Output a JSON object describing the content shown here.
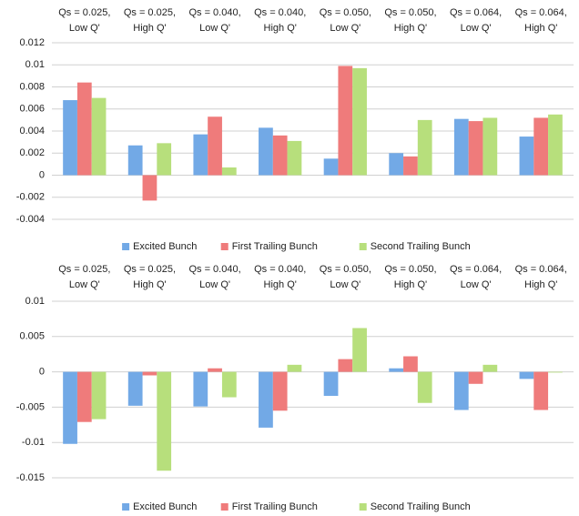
{
  "chart_data": [
    {
      "type": "bar",
      "categories": [
        [
          "Qs = 0.025,",
          "Low Q'"
        ],
        [
          "Qs = 0.025,",
          "High Q'"
        ],
        [
          "Qs = 0.040,",
          "Low Q'"
        ],
        [
          "Qs = 0.040,",
          "High Q'"
        ],
        [
          "Qs = 0.050,",
          "Low Q'"
        ],
        [
          "Qs = 0.050,",
          "High Q'"
        ],
        [
          "Qs = 0.064,",
          "Low Q'"
        ],
        [
          "Qs = 0.064,",
          "High Q'"
        ]
      ],
      "series": [
        {
          "name": "Excited Bunch",
          "color": "#72a9e6",
          "values": [
            0.0068,
            0.0027,
            0.0037,
            0.0043,
            0.0015,
            0.002,
            0.0051,
            0.0035
          ]
        },
        {
          "name": "First Trailing Bunch",
          "color": "#ef7b7b",
          "values": [
            0.0084,
            -0.0023,
            0.0053,
            0.0036,
            0.0099,
            0.0017,
            0.0049,
            0.0052
          ]
        },
        {
          "name": "Second Trailing Bunch",
          "color": "#b7df7c",
          "values": [
            0.007,
            0.0029,
            0.0007,
            0.0031,
            0.0097,
            0.005,
            0.0052,
            0.0055
          ]
        }
      ],
      "ylim": [
        -0.004,
        0.012
      ],
      "yticks": [
        -0.004,
        -0.002,
        0,
        0.002,
        0.004,
        0.006,
        0.008,
        0.01,
        0.012
      ],
      "grid": true,
      "legend": "bottom"
    },
    {
      "type": "bar",
      "categories": [
        [
          "Qs = 0.025,",
          "Low Q'"
        ],
        [
          "Qs = 0.025,",
          "High Q'"
        ],
        [
          "Qs = 0.040,",
          "Low Q'"
        ],
        [
          "Qs = 0.040,",
          "High Q'"
        ],
        [
          "Qs = 0.050,",
          "Low Q'"
        ],
        [
          "Qs = 0.050,",
          "High Q'"
        ],
        [
          "Qs = 0.064,",
          "Low Q'"
        ],
        [
          "Qs = 0.064,",
          "High Q'"
        ]
      ],
      "series": [
        {
          "name": "Excited Bunch",
          "color": "#72a9e6",
          "values": [
            -0.0102,
            -0.0048,
            -0.0049,
            -0.0079,
            -0.0034,
            0.0005,
            -0.0054,
            -0.001
          ]
        },
        {
          "name": "First Trailing Bunch",
          "color": "#ef7b7b",
          "values": [
            -0.0071,
            -0.0005,
            0.0005,
            -0.0055,
            0.0018,
            0.0022,
            -0.0017,
            -0.0054
          ]
        },
        {
          "name": "Second Trailing Bunch",
          "color": "#b7df7c",
          "values": [
            -0.0067,
            -0.014,
            -0.0036,
            0.001,
            0.0062,
            -0.0044,
            0.001,
            -0.0001
          ]
        }
      ],
      "ylim": [
        -0.015,
        0.01
      ],
      "yticks": [
        -0.015,
        -0.01,
        -0.005,
        0,
        0.005,
        0.01
      ],
      "grid": true,
      "legend": "bottom"
    }
  ]
}
